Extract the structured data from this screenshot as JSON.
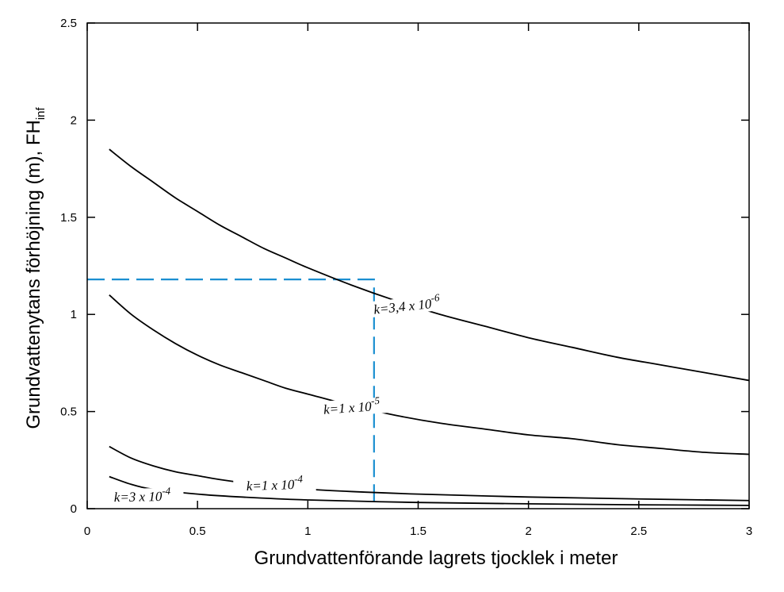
{
  "chart_data": {
    "type": "line",
    "xlabel": "Grundvattenförande lagrets tjocklek i meter",
    "ylabel": "Grundvattenytans förhöjning (m), FH",
    "ylabel_sub": "inf",
    "xlim": [
      0,
      3
    ],
    "ylim": [
      0,
      2.5
    ],
    "x_ticks": [
      "0",
      "0.5",
      "1",
      "1.5",
      "2",
      "2.5",
      "3"
    ],
    "y_ticks": [
      "0",
      "0.5",
      "1",
      "1.5",
      "2",
      "2.5"
    ],
    "grid": false,
    "series": [
      {
        "name": "k=3,4 x 10-6",
        "label_main": "k=3,4 x 10",
        "label_exp": "-6",
        "x": [
          0.1,
          0.2,
          0.3,
          0.4,
          0.5,
          0.6,
          0.7,
          0.8,
          0.9,
          1.0,
          1.2,
          1.4,
          1.6,
          1.8,
          2.0,
          2.2,
          2.4,
          2.6,
          2.8,
          3.0
        ],
        "y": [
          1.85,
          1.76,
          1.68,
          1.6,
          1.53,
          1.46,
          1.4,
          1.34,
          1.29,
          1.24,
          1.15,
          1.07,
          1.0,
          0.94,
          0.88,
          0.83,
          0.78,
          0.74,
          0.7,
          0.66
        ]
      },
      {
        "name": "k=1 x 10-5",
        "label_main": "k=1 x 10",
        "label_exp": "-5",
        "x": [
          0.1,
          0.2,
          0.3,
          0.4,
          0.5,
          0.6,
          0.7,
          0.8,
          0.9,
          1.0,
          1.2,
          1.4,
          1.6,
          1.8,
          2.0,
          2.2,
          2.4,
          2.6,
          2.8,
          3.0
        ],
        "y": [
          1.1,
          1.0,
          0.92,
          0.85,
          0.79,
          0.74,
          0.7,
          0.66,
          0.62,
          0.59,
          0.53,
          0.48,
          0.44,
          0.41,
          0.38,
          0.36,
          0.33,
          0.31,
          0.29,
          0.28
        ]
      },
      {
        "name": "k=1 x 10-4",
        "label_main": "k=1 x 10",
        "label_exp": "-4",
        "x": [
          0.1,
          0.2,
          0.3,
          0.4,
          0.5,
          0.6,
          0.8,
          1.0,
          1.2,
          1.5,
          2.0,
          2.5,
          3.0
        ],
        "y": [
          0.32,
          0.26,
          0.22,
          0.19,
          0.17,
          0.15,
          0.12,
          0.1,
          0.088,
          0.075,
          0.06,
          0.05,
          0.042
        ]
      },
      {
        "name": "k=3 x 10-4",
        "label_main": "k=3 x 10",
        "label_exp": "-4",
        "x": [
          0.1,
          0.2,
          0.3,
          0.5,
          0.7,
          1.0,
          1.5,
          2.0,
          2.5,
          3.0
        ],
        "y": [
          0.165,
          0.125,
          0.1,
          0.075,
          0.06,
          0.045,
          0.032,
          0.025,
          0.02,
          0.017
        ]
      }
    ],
    "reference_lines": [
      {
        "style": "dashed",
        "color": "#1a8fd1",
        "x": [
          0,
          1.3,
          1.3
        ],
        "y": [
          1.18,
          1.18,
          0
        ]
      }
    ],
    "colors": {
      "curve": "#000000",
      "reference": "#1a8fd1"
    }
  }
}
